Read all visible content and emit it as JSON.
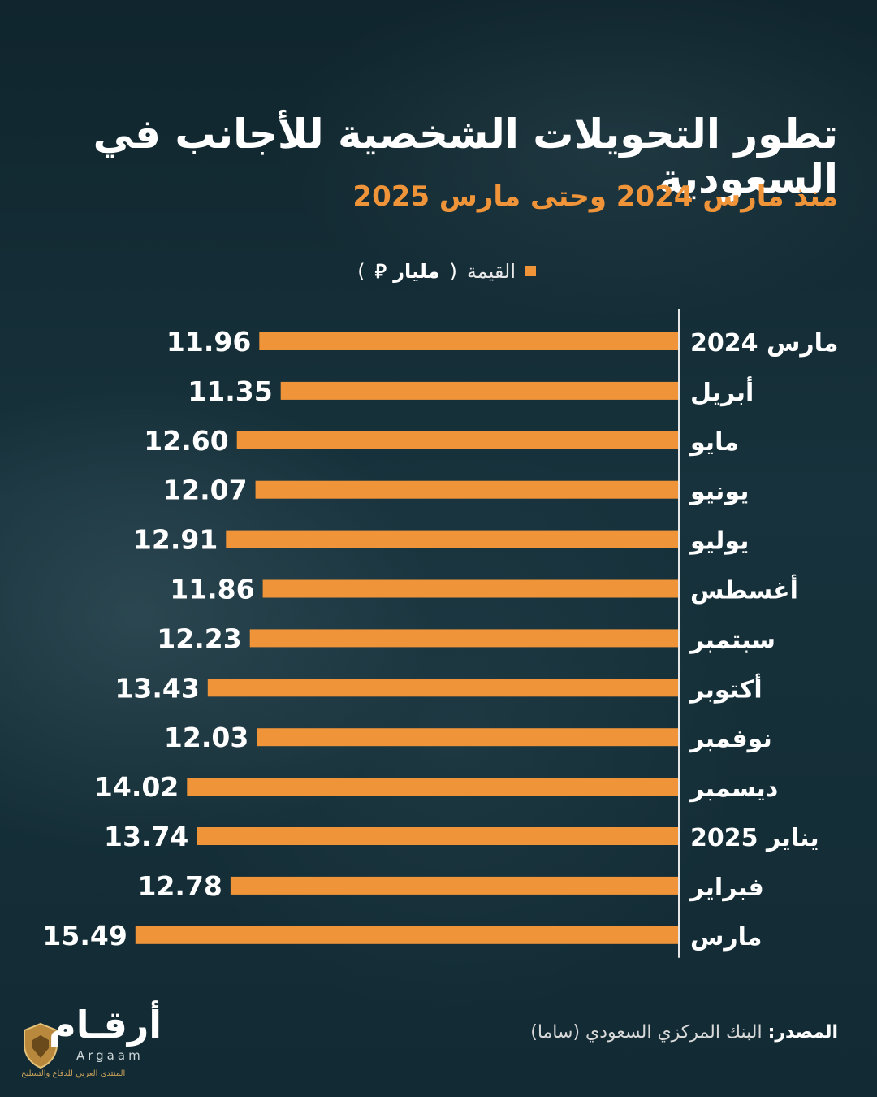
{
  "header": {
    "title": "تطور التحويلات الشخصية للأجانب في السعودية",
    "subtitle": "منذ مارس 2024 وحتى مارس 2025"
  },
  "legend": {
    "label": "القيمة",
    "unit_open": "(",
    "unit": "مليار ⃁",
    "unit_close": ")"
  },
  "colors": {
    "bar": "#f0943a",
    "text": "#ffffff",
    "axis": "#e6e6e6"
  },
  "chart_data": {
    "type": "bar",
    "orientation": "horizontal",
    "title": "تطور التحويلات الشخصية للأجانب في السعودية",
    "subtitle": "منذ مارس 2024 وحتى مارس 2025",
    "xlabel": "القيمة (مليار ⃁)",
    "ylabel": "",
    "xlim": [
      0,
      16
    ],
    "categories": [
      "مارس 2024",
      "أبريل",
      "مايو",
      "يونيو",
      "يوليو",
      "أغسطس",
      "سبتمبر",
      "أكتوبر",
      "نوفمبر",
      "ديسمبر",
      "يناير 2025",
      "فبراير",
      "مارس"
    ],
    "values": [
      11.96,
      11.35,
      12.6,
      12.07,
      12.91,
      11.86,
      12.23,
      13.43,
      12.03,
      14.02,
      13.74,
      12.78,
      15.49
    ],
    "value_labels": [
      "11.96",
      "11.35",
      "12.60",
      "12.07",
      "12.91",
      "11.86",
      "12.23",
      "13.43",
      "12.03",
      "14.02",
      "13.74",
      "12.78",
      "15.49"
    ],
    "legend": "top"
  },
  "footer": {
    "source_label": "المصدر:",
    "source_text": "البنك المركزي السعودي (ساما)"
  },
  "logo": {
    "wordmark": "أرقـام",
    "latin": "Argaam",
    "caption": "المنتدى العربي للدفاع والتسليح"
  }
}
